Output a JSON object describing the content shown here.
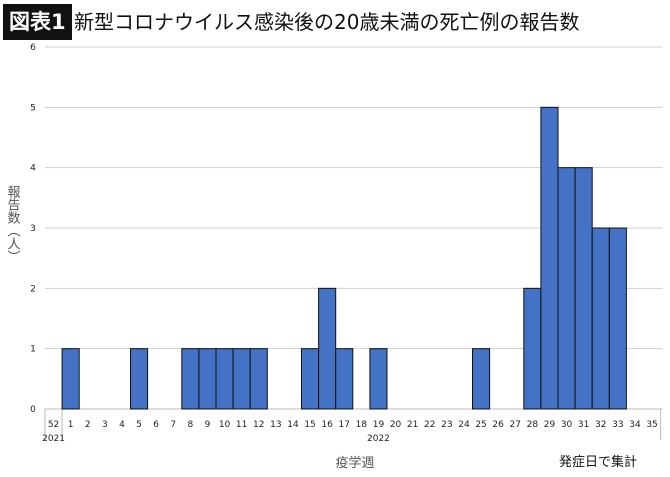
{
  "header": {
    "badge": "図表1",
    "title": "新型コロナウイルス感染後の20歳未満の死亡例の報告数"
  },
  "chart_data": {
    "type": "bar",
    "title": "新型コロナウイルス感染後の20歳未満の死亡例の報告数",
    "xlabel": "疫学週",
    "ylabel": "報告数（人）",
    "note": "発症日で集計",
    "year_labels": [
      {
        "label": "2021",
        "category": "52"
      },
      {
        "label": "2022",
        "category": "19"
      }
    ],
    "categories": [
      "52",
      "1",
      "2",
      "3",
      "4",
      "5",
      "6",
      "7",
      "8",
      "9",
      "10",
      "11",
      "12",
      "13",
      "14",
      "15",
      "16",
      "17",
      "18",
      "19",
      "20",
      "21",
      "22",
      "23",
      "24",
      "25",
      "26",
      "27",
      "28",
      "29",
      "30",
      "31",
      "32",
      "33",
      "34",
      "35"
    ],
    "values": [
      0,
      1,
      0,
      0,
      0,
      1,
      0,
      0,
      1,
      1,
      1,
      1,
      1,
      0,
      0,
      1,
      2,
      1,
      0,
      1,
      0,
      0,
      0,
      0,
      0,
      1,
      0,
      0,
      2,
      5,
      4,
      4,
      3,
      3,
      0,
      0
    ],
    "ylim": [
      0,
      6
    ],
    "yticks": [
      "0",
      "1",
      "2",
      "3",
      "4",
      "5",
      "6"
    ],
    "grid": true,
    "colors": {
      "bar": "#4472c4",
      "bar_edge": "#111111",
      "grid": "#d0d0d0"
    }
  }
}
